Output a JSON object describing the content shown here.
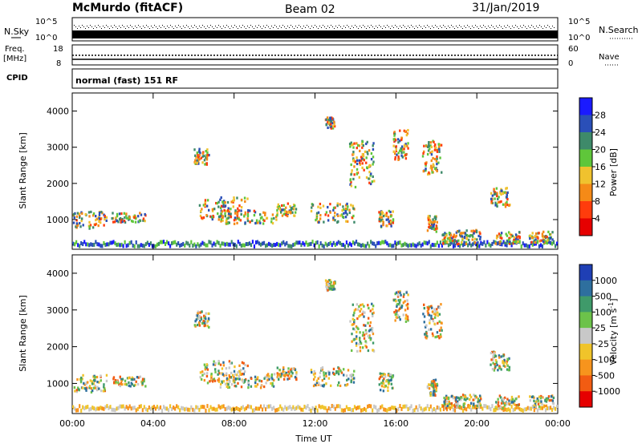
{
  "header": {
    "station": "McMurdo (fitACF)",
    "beam": "Beam 02",
    "date": "31/Jan/2019"
  },
  "top_panels": {
    "nsky_label": "N.Sky",
    "nsearch_label": "N.Search",
    "nsky_ticks": [
      "10^5",
      "10^0"
    ],
    "nsearch_ticks": [
      "10^5",
      "10^0"
    ],
    "freq_label": "Freq.",
    "freq_unit": "[MHz]",
    "freq_ticks": [
      "18",
      "8"
    ],
    "nave_label": "Nave",
    "nave_ticks": [
      "60",
      "0"
    ],
    "cpid_label": "CPID",
    "cpid_value": "normal (fast) 151 RF"
  },
  "chart_data": [
    {
      "type": "heatmap",
      "ylabel": "Slant Range [km]",
      "colorbar_label": "Power [dB]",
      "colorbar_ticks": [
        "4",
        "8",
        "12",
        "16",
        "20",
        "24",
        "28"
      ],
      "colorbar_colors": [
        "#1a1aff",
        "#2a4fb8",
        "#3e8a6a",
        "#5fc63a",
        "#f0c22e",
        "#f58a17",
        "#ff3c0c",
        "#e60000"
      ],
      "y_ticks": [
        "1000",
        "2000",
        "3000",
        "4000"
      ],
      "ylim": [
        180,
        4500
      ],
      "x_ticks": [
        "00:00",
        "04:00",
        "08:00",
        "12:00",
        "16:00",
        "20:00",
        "00:00"
      ]
    },
    {
      "type": "heatmap",
      "ylabel": "Slant Range [km]",
      "colorbar_label": "Velocity",
      "colorbar_unit": "[m s",
      "colorbar_unit_sup": "-1",
      "colorbar_unit_end": "]",
      "colorbar_ticks": [
        "1000",
        "500",
        "100",
        "25",
        "-25",
        "-100",
        "-500",
        "-1000"
      ],
      "colorbar_colors": [
        "#1f3fb5",
        "#2e6f9e",
        "#3f9a6a",
        "#6cc24a",
        "#c8c8c8",
        "#f0c42a",
        "#f7941d",
        "#f25c12",
        "#e60000"
      ],
      "y_ticks": [
        "1000",
        "2000",
        "3000",
        "4000"
      ],
      "ylim": [
        180,
        4500
      ],
      "x_ticks": [
        "00:00",
        "04:00",
        "08:00",
        "12:00",
        "16:00",
        "20:00",
        "00:00"
      ],
      "xlabel": "Time UT"
    }
  ]
}
